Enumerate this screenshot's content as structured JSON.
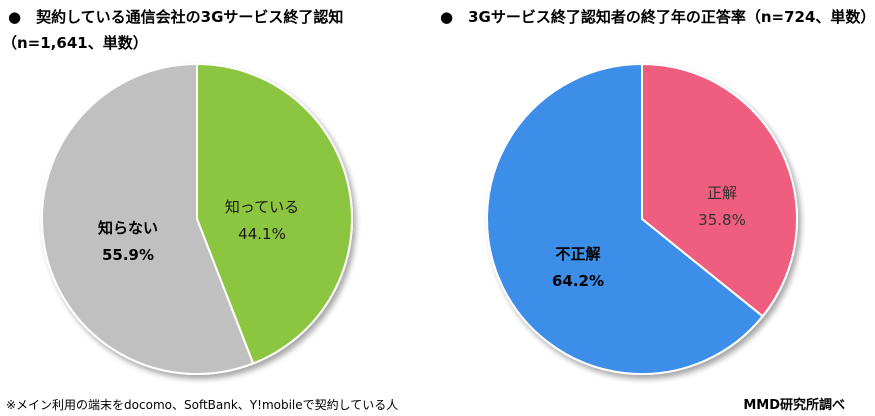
{
  "chart_data": [
    {
      "type": "pie",
      "title": "●　契約している通信会社の3Gサービス終了認知",
      "subtitle": "（n=1,641、単数）",
      "slices": [
        {
          "label": "知っている",
          "value": 44.1,
          "display": "44.1%",
          "color": "#8cc63f",
          "label_color": "#1a1a1a",
          "bold": false
        },
        {
          "label": "知らない",
          "value": 55.9,
          "display": "55.9%",
          "color": "#c0c0c0",
          "label_color": "#000000",
          "bold": true
        }
      ]
    },
    {
      "type": "pie",
      "title": "●　3Gサービス終了認知者の終了年の正答率（n=724、単数）",
      "subtitle": "",
      "slices": [
        {
          "label": "正解",
          "value": 35.8,
          "display": "35.8%",
          "color": "#ef5d7f",
          "label_color": "#333333",
          "bold": false
        },
        {
          "label": "不正解",
          "value": 64.2,
          "display": "64.2%",
          "color": "#3d8ee8",
          "label_color": "#000000",
          "bold": true
        }
      ]
    }
  ],
  "footnote": "※メイン利用の端末をdocomo、SoftBank、Y!mobileで契約している人",
  "credit": "MMD研究所調べ"
}
